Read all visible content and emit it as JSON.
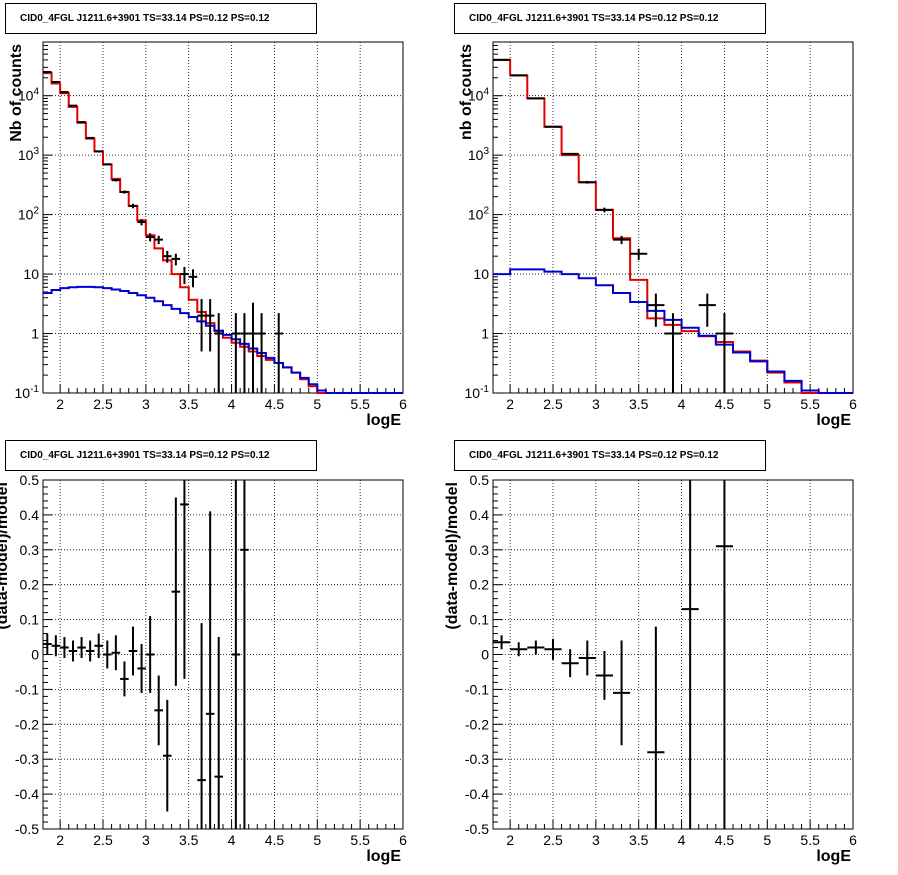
{
  "title_text": "CID0_4FGL J1211.6+3901 TS=33.14 PS=0.12 PS=0.12",
  "chart_data": [
    {
      "type": "line",
      "panel": "top-left",
      "title": "CID0_4FGL J1211.6+3901 TS=33.14 PS=0.12 PS=0.12",
      "xlabel": "logE",
      "ylabel": "Nb of counts",
      "xlim": [
        1.8,
        6.0
      ],
      "ylim": [
        0.1,
        80000
      ],
      "yscale": "log",
      "grid": true,
      "xticks": [
        "2",
        "2.5",
        "3",
        "3.5",
        "4",
        "4.5",
        "5",
        "5.5",
        "6"
      ],
      "yticks": [
        "10^-1",
        "1",
        "10",
        "10^2",
        "10^3",
        "10^4"
      ],
      "bin_edges": [
        1.8,
        1.9,
        2.0,
        2.1,
        2.2,
        2.3,
        2.4,
        2.5,
        2.6,
        2.7,
        2.8,
        2.9,
        3.0,
        3.1,
        3.2,
        3.3,
        3.4,
        3.5,
        3.6,
        3.7,
        3.8,
        3.9,
        4.0,
        4.1,
        4.2,
        4.3,
        4.4,
        4.5,
        4.6,
        4.7,
        4.8,
        4.9,
        5.0,
        5.1,
        5.2,
        5.3,
        5.4,
        5.5,
        5.6,
        5.7,
        5.8,
        5.9,
        6.0
      ],
      "series": [
        {
          "color": "#e00000",
          "style": "step",
          "values": [
            24000,
            16000,
            11000,
            6500,
            3500,
            1900,
            1150,
            700,
            400,
            240,
            140,
            80,
            45,
            27,
            17,
            10,
            6,
            3.7,
            2.3,
            1.5,
            1.1,
            0.85,
            0.7,
            0.6,
            0.5,
            0.42,
            0.36,
            0.32,
            0.27,
            0.22,
            0.17,
            0.13,
            0.1,
            0.1,
            0.1,
            0.1,
            0.1,
            0.1,
            0.1,
            0.1,
            0.1,
            0.1
          ]
        },
        {
          "color": "#0000d0",
          "style": "step",
          "values": [
            4.8,
            5.4,
            5.8,
            6.0,
            6.1,
            6.1,
            6.0,
            5.8,
            5.5,
            5.2,
            4.8,
            4.4,
            4.0,
            3.5,
            3.0,
            2.6,
            2.2,
            1.9,
            1.6,
            1.35,
            1.12,
            0.95,
            0.8,
            0.67,
            0.56,
            0.47,
            0.39,
            0.32,
            0.27,
            0.22,
            0.18,
            0.14,
            0.11,
            0.1,
            0.1,
            0.1,
            0.1,
            0.1,
            0.1,
            0.1,
            0.1,
            0.1
          ]
        }
      ],
      "data_points": [
        {
          "x": 1.85,
          "y": 25000,
          "yerr_lo": 160,
          "yerr_hi": 160
        },
        {
          "x": 1.95,
          "y": 17000,
          "yerr_lo": 130,
          "yerr_hi": 130
        },
        {
          "x": 2.05,
          "y": 11500,
          "yerr_lo": 110,
          "yerr_hi": 110
        },
        {
          "x": 2.15,
          "y": 6800,
          "yerr_lo": 80,
          "yerr_hi": 80
        },
        {
          "x": 2.25,
          "y": 3600,
          "yerr_lo": 60,
          "yerr_hi": 60
        },
        {
          "x": 2.35,
          "y": 1950,
          "yerr_lo": 44,
          "yerr_hi": 44
        },
        {
          "x": 2.45,
          "y": 1160,
          "yerr_lo": 34,
          "yerr_hi": 34
        },
        {
          "x": 2.55,
          "y": 700,
          "yerr_lo": 26,
          "yerr_hi": 26
        },
        {
          "x": 2.65,
          "y": 380,
          "yerr_lo": 20,
          "yerr_hi": 20
        },
        {
          "x": 2.75,
          "y": 240,
          "yerr_lo": 15,
          "yerr_hi": 15
        },
        {
          "x": 2.85,
          "y": 140,
          "yerr_lo": 12,
          "yerr_hi": 12
        },
        {
          "x": 2.95,
          "y": 75,
          "yerr_lo": 9,
          "yerr_hi": 9
        },
        {
          "x": 3.05,
          "y": 42,
          "yerr_lo": 6.5,
          "yerr_hi": 6.5
        },
        {
          "x": 3.15,
          "y": 38,
          "yerr_lo": 6,
          "yerr_hi": 6
        },
        {
          "x": 3.25,
          "y": 20,
          "yerr_lo": 4.5,
          "yerr_hi": 4.5
        },
        {
          "x": 3.35,
          "y": 18,
          "yerr_lo": 4,
          "yerr_hi": 4
        },
        {
          "x": 3.45,
          "y": 10,
          "yerr_lo": 3.2,
          "yerr_hi": 3.2
        },
        {
          "x": 3.55,
          "y": 9,
          "yerr_lo": 3,
          "yerr_hi": 3
        },
        {
          "x": 3.65,
          "y": 2,
          "yerr_lo": 1.5,
          "yerr_hi": 1.8
        },
        {
          "x": 3.75,
          "y": 2,
          "yerr_lo": 1.5,
          "yerr_hi": 1.8
        },
        {
          "x": 3.85,
          "y": 1,
          "yerr_lo": 0.99,
          "yerr_hi": 1.2
        },
        {
          "x": 4.05,
          "y": 1,
          "yerr_lo": 0.99,
          "yerr_hi": 1.2
        },
        {
          "x": 4.15,
          "y": 1,
          "yerr_lo": 0.99,
          "yerr_hi": 1.2
        },
        {
          "x": 4.25,
          "y": 1,
          "yerr_lo": 0.99,
          "yerr_hi": 2.3
        },
        {
          "x": 4.35,
          "y": 1,
          "yerr_lo": 0.99,
          "yerr_hi": 1.2
        },
        {
          "x": 4.55,
          "y": 1,
          "yerr_lo": 0.99,
          "yerr_hi": 1.2
        }
      ]
    },
    {
      "type": "line",
      "panel": "top-right",
      "title": "CID0_4FGL J1211.6+3901 TS=33.14 PS=0.12 PS=0.12",
      "xlabel": "logE",
      "ylabel": "nb of counts",
      "xlim": [
        1.8,
        6.0
      ],
      "ylim": [
        0.1,
        80000
      ],
      "yscale": "log",
      "grid": true,
      "xticks": [
        "2",
        "2.5",
        "3",
        "3.5",
        "4",
        "4.5",
        "5",
        "5.5",
        "6"
      ],
      "yticks": [
        "10^-1",
        "1",
        "10",
        "10^2",
        "10^3",
        "10^4"
      ],
      "bin_edges": [
        1.8,
        2.0,
        2.2,
        2.4,
        2.6,
        2.8,
        3.0,
        3.2,
        3.4,
        3.6,
        3.8,
        4.0,
        4.2,
        4.4,
        4.6,
        4.8,
        5.0,
        5.2,
        5.4,
        5.6,
        5.8,
        6.0
      ],
      "series": [
        {
          "color": "#e00000",
          "style": "step",
          "values": [
            40000,
            22000,
            9000,
            3000,
            1000,
            350,
            120,
            40,
            8,
            1.8,
            1.4,
            1.1,
            0.9,
            0.72,
            0.5,
            0.35,
            0.22,
            0.15,
            0.1,
            0.1,
            0.1
          ]
        },
        {
          "color": "#0000d0",
          "style": "step",
          "values": [
            10,
            12,
            12,
            11,
            10,
            8.5,
            6.5,
            4.8,
            3.4,
            2.4,
            1.7,
            1.25,
            0.92,
            0.65,
            0.48,
            0.34,
            0.23,
            0.16,
            0.11,
            0.1,
            0.1
          ]
        }
      ],
      "data_points": [
        {
          "x": 1.9,
          "y": 40000,
          "yerr_lo": 200,
          "yerr_hi": 200
        },
        {
          "x": 2.1,
          "y": 22000,
          "yerr_lo": 150,
          "yerr_hi": 150
        },
        {
          "x": 2.3,
          "y": 9000,
          "yerr_lo": 95,
          "yerr_hi": 95
        },
        {
          "x": 2.5,
          "y": 3000,
          "yerr_lo": 55,
          "yerr_hi": 55
        },
        {
          "x": 2.7,
          "y": 1050,
          "yerr_lo": 32,
          "yerr_hi": 32
        },
        {
          "x": 2.9,
          "y": 350,
          "yerr_lo": 19,
          "yerr_hi": 19
        },
        {
          "x": 3.1,
          "y": 120,
          "yerr_lo": 11,
          "yerr_hi": 11
        },
        {
          "x": 3.3,
          "y": 38,
          "yerr_lo": 6,
          "yerr_hi": 6
        },
        {
          "x": 3.5,
          "y": 22,
          "yerr_lo": 4.7,
          "yerr_hi": 4.7
        },
        {
          "x": 3.7,
          "y": 3,
          "yerr_lo": 1.7,
          "yerr_hi": 1.7
        },
        {
          "x": 3.9,
          "y": 1,
          "yerr_lo": 0.99,
          "yerr_hi": 1.2
        },
        {
          "x": 4.3,
          "y": 3,
          "yerr_lo": 1.7,
          "yerr_hi": 1.7
        },
        {
          "x": 4.5,
          "y": 1,
          "yerr_lo": 0.99,
          "yerr_hi": 1.2
        }
      ]
    },
    {
      "type": "scatter",
      "panel": "bottom-left",
      "title": "CID0_4FGL J1211.6+3901 TS=33.14 PS=0.12 PS=0.12",
      "xlabel": "logE",
      "ylabel": "(data-model)/model",
      "xlim": [
        1.8,
        6.0
      ],
      "ylim": [
        -0.5,
        0.5
      ],
      "grid": true,
      "xticks": [
        "2",
        "2.5",
        "3",
        "3.5",
        "4",
        "4.5",
        "5",
        "5.5",
        "6"
      ],
      "yticks": [
        "-0.5",
        "-0.4",
        "-0.3",
        "-0.2",
        "-0.1",
        "0",
        "0.1",
        "0.2",
        "0.3",
        "0.4",
        "0.5"
      ],
      "data_points": [
        {
          "x": 1.85,
          "y": 0.03,
          "yerr": 0.03
        },
        {
          "x": 1.95,
          "y": 0.025,
          "yerr": 0.03
        },
        {
          "x": 2.05,
          "y": 0.02,
          "yerr": 0.03
        },
        {
          "x": 2.15,
          "y": 0.01,
          "yerr": 0.03
        },
        {
          "x": 2.25,
          "y": 0.02,
          "yerr": 0.03
        },
        {
          "x": 2.35,
          "y": 0.01,
          "yerr": 0.03
        },
        {
          "x": 2.45,
          "y": 0.025,
          "yerr": 0.035
        },
        {
          "x": 2.55,
          "y": 0.0,
          "yerr": 0.04
        },
        {
          "x": 2.65,
          "y": 0.005,
          "yerr": 0.05
        },
        {
          "x": 2.75,
          "y": -0.07,
          "yerr": 0.05
        },
        {
          "x": 2.85,
          "y": 0.01,
          "yerr": 0.07
        },
        {
          "x": 2.95,
          "y": -0.04,
          "yerr": 0.07
        },
        {
          "x": 3.05,
          "y": 0.0,
          "yerr": 0.11
        },
        {
          "x": 3.15,
          "y": -0.16,
          "yerr": 0.1
        },
        {
          "x": 3.25,
          "y": -0.29,
          "yerr": 0.16
        },
        {
          "x": 3.35,
          "y": 0.18,
          "yerr": 0.27
        },
        {
          "x": 3.45,
          "y": 0.43,
          "yerr": 0.5
        },
        {
          "x": 3.65,
          "y": -0.36,
          "yerr": 0.45
        },
        {
          "x": 3.75,
          "y": -0.17,
          "yerr": 0.58
        },
        {
          "x": 3.85,
          "y": -0.35,
          "yerr": 0.4
        },
        {
          "x": 4.05,
          "y": 0.0,
          "yerr": 1.0
        },
        {
          "x": 4.15,
          "y": 0.3,
          "yerr": 1.0
        }
      ]
    },
    {
      "type": "scatter",
      "panel": "bottom-right",
      "title": "CID0_4FGL J1211.6+3901 TS=33.14 PS=0.12 PS=0.12",
      "xlabel": "logE",
      "ylabel": "(data-model)/model",
      "xlim": [
        1.8,
        6.0
      ],
      "ylim": [
        -0.5,
        0.5
      ],
      "grid": true,
      "xticks": [
        "2",
        "2.5",
        "3",
        "3.5",
        "4",
        "4.5",
        "5",
        "5.5",
        "6"
      ],
      "yticks": [
        "-0.5",
        "-0.4",
        "-0.3",
        "-0.2",
        "-0.1",
        "0",
        "0.1",
        "0.2",
        "0.3",
        "0.4",
        "0.5"
      ],
      "data_points": [
        {
          "x": 1.9,
          "y": 0.035,
          "yerr": 0.02
        },
        {
          "x": 2.1,
          "y": 0.015,
          "yerr": 0.02
        },
        {
          "x": 2.3,
          "y": 0.02,
          "yerr": 0.02
        },
        {
          "x": 2.5,
          "y": 0.015,
          "yerr": 0.03
        },
        {
          "x": 2.7,
          "y": -0.025,
          "yerr": 0.04
        },
        {
          "x": 2.9,
          "y": -0.01,
          "yerr": 0.05
        },
        {
          "x": 3.1,
          "y": -0.06,
          "yerr": 0.07
        },
        {
          "x": 3.3,
          "y": -0.11,
          "yerr": 0.15
        },
        {
          "x": 3.7,
          "y": -0.28,
          "yerr": 0.36
        },
        {
          "x": 4.1,
          "y": 0.13,
          "yerr": 1.0
        },
        {
          "x": 4.5,
          "y": 0.31,
          "yerr": 1.0
        }
      ]
    }
  ]
}
